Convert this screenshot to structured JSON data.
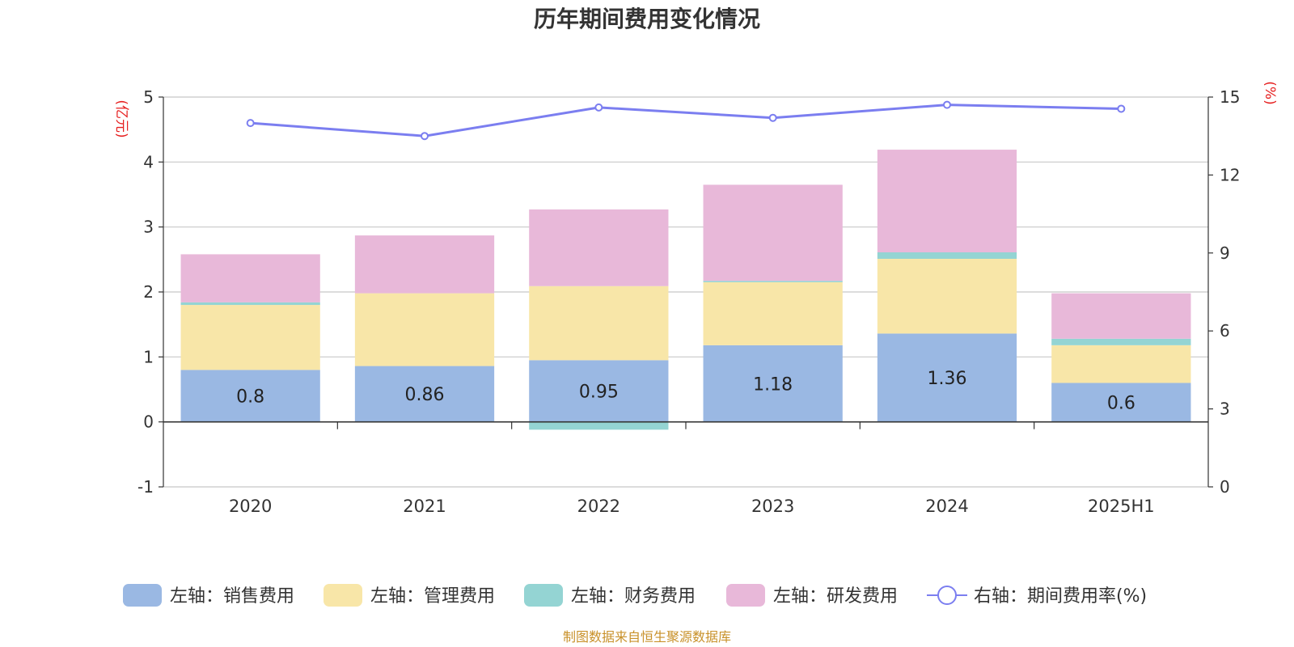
{
  "chart_data": {
    "type": "bar",
    "title": "历年期间费用变化情况",
    "categories": [
      "2020",
      "2021",
      "2022",
      "2023",
      "2024",
      "2025H1"
    ],
    "stacked": true,
    "left_axis": {
      "unit_label": "(亿元)",
      "ylim": [
        -1,
        5
      ],
      "ticks": [
        -1,
        0,
        1,
        2,
        3,
        4,
        5
      ]
    },
    "right_axis": {
      "unit_label": "(%)",
      "ylim": [
        0,
        15
      ],
      "ticks": [
        0,
        3,
        6,
        9,
        12,
        15
      ]
    },
    "series": [
      {
        "name": "左轴：销售费用",
        "axis": "left",
        "kind": "bar",
        "color": "#9ab8e3",
        "values": [
          0.8,
          0.86,
          0.95,
          1.18,
          1.36,
          0.6
        ],
        "show_labels": true
      },
      {
        "name": "左轴：管理费用",
        "axis": "left",
        "kind": "bar",
        "color": "#f8e6a8",
        "values": [
          1.0,
          1.12,
          1.14,
          0.97,
          1.15,
          0.58
        ],
        "show_labels": false
      },
      {
        "name": "左轴：财务费用",
        "axis": "left",
        "kind": "bar",
        "color": "#94d4d3",
        "values": [
          0.04,
          0.0,
          -0.12,
          0.02,
          0.1,
          0.1
        ],
        "show_labels": false
      },
      {
        "name": "左轴：研发费用",
        "axis": "left",
        "kind": "bar",
        "color": "#e8b8d9",
        "values": [
          0.74,
          0.89,
          1.18,
          1.48,
          1.58,
          0.7
        ],
        "show_labels": false
      },
      {
        "name": "右轴：期间费用率(%)",
        "axis": "right",
        "kind": "line",
        "color": "#7b7ef0",
        "values": [
          14.0,
          13.5,
          14.6,
          14.2,
          14.7,
          14.55
        ],
        "show_labels": false
      }
    ],
    "grid": true,
    "legend_position": "bottom"
  },
  "source_note": "制图数据来自恒生聚源数据库"
}
